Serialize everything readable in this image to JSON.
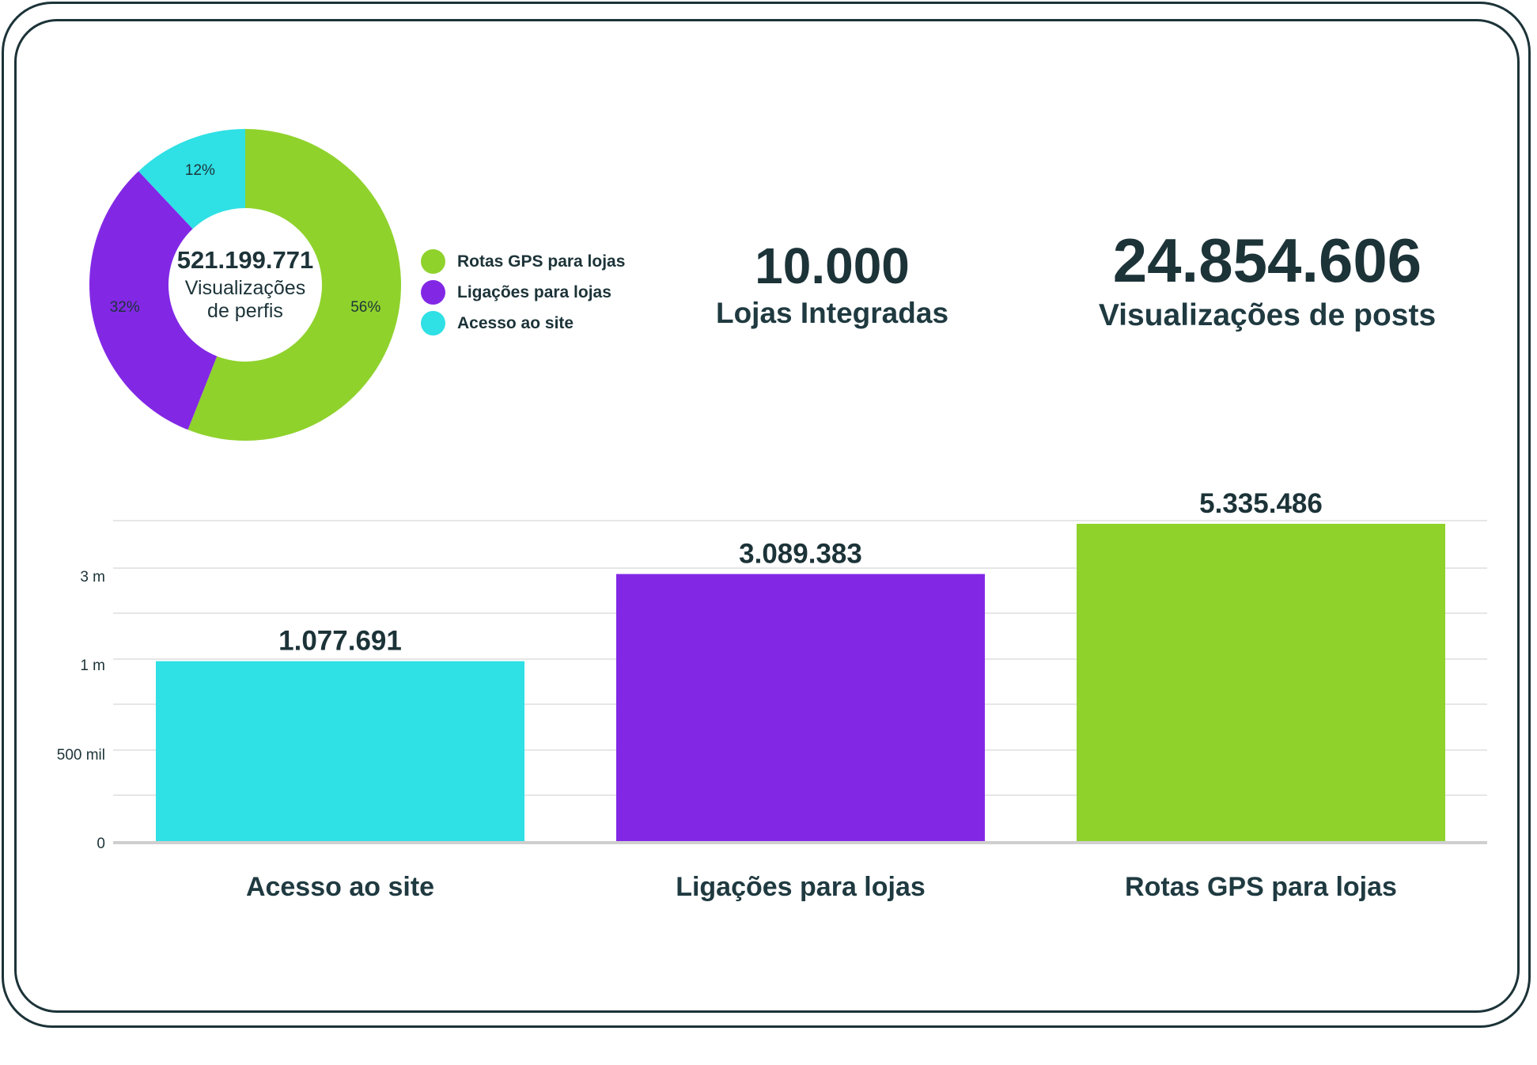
{
  "colors": {
    "green": "#8fd22c",
    "purple": "#8228e5",
    "cyan": "#2fe0e5",
    "dark": "#1c3338",
    "grid": "#e6e6e6"
  },
  "donut": {
    "total": "521.199.771",
    "subtitle": "Visualizações de perfis",
    "legend": [
      {
        "label": "Rotas GPS para lojas",
        "color": "#8fd22c"
      },
      {
        "label": "Ligações para lojas",
        "color": "#8228e5"
      },
      {
        "label": "Acesso ao site",
        "color": "#2fe0e5"
      }
    ]
  },
  "kpis": [
    {
      "value": "10.000",
      "label": "Lojas Integradas"
    },
    {
      "value": "24.854.606",
      "label": "Visualizações de posts"
    }
  ],
  "chart_data": [
    {
      "type": "pie",
      "donut": true,
      "slices": [
        {
          "label": "Rotas GPS para lojas",
          "percent": 56,
          "percent_label": "56%",
          "color": "#8fd22c"
        },
        {
          "label": "Ligações para lojas",
          "percent": 32,
          "percent_label": "32%",
          "color": "#8228e5"
        },
        {
          "label": "Acesso ao site",
          "percent": 12,
          "percent_label": "12%",
          "color": "#2fe0e5"
        }
      ],
      "legend": "right"
    },
    {
      "type": "bar",
      "categories": [
        "Acesso ao site",
        "Ligações para lojas",
        "Rotas GPS para lojas"
      ],
      "values": [
        1077691,
        3089383,
        5335486
      ],
      "value_labels": [
        "1.077.691",
        "3.089.383",
        "5.335.486"
      ],
      "colors": [
        "#2fe0e5",
        "#8228e5",
        "#8fd22c"
      ],
      "y_ticks": [
        {
          "label": "0",
          "value": 0
        },
        {
          "label": "500 mil",
          "value": 500000
        },
        {
          "label": "1 m",
          "value": 1000000
        },
        {
          "label": "3 m",
          "value": 3000000
        }
      ],
      "grid": true
    }
  ]
}
